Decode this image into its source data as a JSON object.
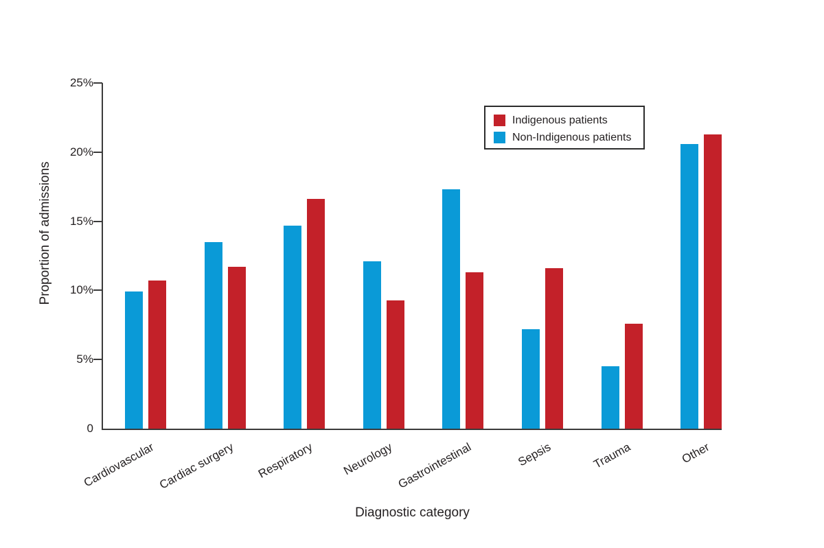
{
  "chart_data": {
    "type": "bar",
    "title": "",
    "xlabel": "Diagnostic category",
    "ylabel": "Proportion of admissions",
    "categories": [
      "Cardiovascular",
      "Cardiac surgery",
      "Respiratory",
      "Neurology",
      "Gastrointestinal",
      "Sepsis",
      "Trauma",
      "Other"
    ],
    "series": [
      {
        "name": "Indigenous patients",
        "color": "#c32129",
        "values": [
          10.7,
          11.7,
          16.6,
          9.3,
          11.3,
          11.6,
          7.6,
          21.3
        ]
      },
      {
        "name": "Non-Indigenous patients",
        "color": "#0a9ad7",
        "values": [
          9.9,
          13.5,
          14.7,
          12.1,
          17.3,
          7.2,
          4.5,
          20.6
        ]
      }
    ],
    "bar_left_to_right_series_order": [
      "Non-Indigenous patients",
      "Indigenous patients"
    ],
    "ylim": [
      0,
      25
    ],
    "yticks": [
      {
        "label": "0",
        "value": 0
      },
      {
        "label": "5%",
        "value": 5
      },
      {
        "label": "10%",
        "value": 10
      },
      {
        "label": "15%",
        "value": 15
      },
      {
        "label": "20%",
        "value": 20
      },
      {
        "label": "25%",
        "value": 25
      }
    ],
    "grid": false,
    "legend_position": "upper-right-inside",
    "axis_color": "#3a3a3a",
    "text_color": "#231f20",
    "background_color": "#ffffff"
  }
}
